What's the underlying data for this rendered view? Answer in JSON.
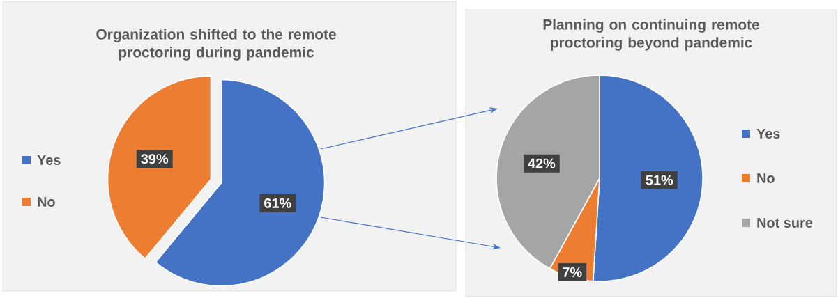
{
  "chart_data": [
    {
      "type": "pie",
      "title": "Organization shifted to the remote proctoring during pandemic",
      "categories": [
        "Yes",
        "No"
      ],
      "values": [
        61,
        39
      ],
      "colors": [
        "#4472c4",
        "#ed7d31"
      ],
      "value_labels": [
        "61%",
        "39%"
      ],
      "legend": "left"
    },
    {
      "type": "pie",
      "title": "Planning on continuing remote proctoring beyond pandemic",
      "categories": [
        "Yes",
        "No",
        "Not sure"
      ],
      "values": [
        51,
        7,
        42
      ],
      "colors": [
        "#4472c4",
        "#ed7d31",
        "#a5a5a5"
      ],
      "value_labels": [
        "51%",
        "7%",
        "42%"
      ],
      "legend": "right"
    }
  ]
}
